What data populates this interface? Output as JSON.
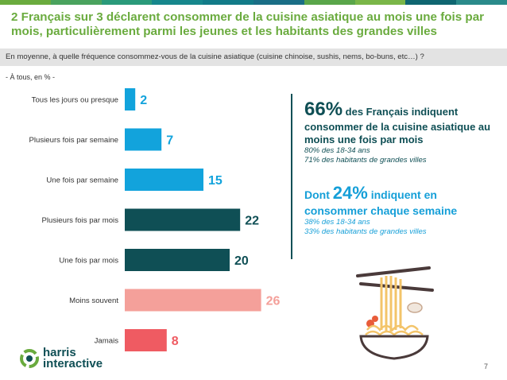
{
  "title": "2 Français sur 3 déclarent consommer de la cuisine asiatique au mois une fois par mois, particulièrement parmi les jeunes et les habitants des grandes villes",
  "question": "En moyenne, à quelle fréquence consommez-vous de la cuisine asiatique (cuisine chinoise, sushis, nems, bo-buns, etc…) ?",
  "base": "- À tous, en % -",
  "chart_data": {
    "type": "bar",
    "orientation": "horizontal",
    "categories": [
      "Tous les jours ou presque",
      "Plusieurs fois par semaine",
      "Une fois par semaine",
      "Plusieurs fois par mois",
      "Une fois par mois",
      "Moins souvent",
      "Jamais"
    ],
    "values": [
      2,
      7,
      15,
      22,
      20,
      26,
      8
    ],
    "colors": [
      "#12a3dc",
      "#12a3dc",
      "#12a3dc",
      "#0f4f55",
      "#0f4f55",
      "#f4a09a",
      "#ef5b62"
    ],
    "label_colors": [
      "#12a3dc",
      "#12a3dc",
      "#12a3dc",
      "#0f4f55",
      "#0f4f55",
      "#f4a09a",
      "#ef5b62"
    ],
    "xlim": [
      0,
      30
    ],
    "grid": false,
    "legend": "none"
  },
  "callouts": {
    "pct1": "66%",
    "text1a": " des Français indiquent",
    "text1b": "consommer de la cuisine asiatique au moins une fois par mois",
    "sub1a": "80% des 18-34 ans",
    "sub1b": "71% des habitants de grandes villes",
    "prefix2": "Dont ",
    "pct2": "24%",
    "text2a": " indiquent en",
    "text2b": "consommer chaque semaine",
    "sub2a": "38% des 18-34 ans",
    "sub2b": "33% des habitants de grandes villes"
  },
  "logo": {
    "line1": "harris",
    "line2": "interactive"
  },
  "page_number": "7",
  "topbar_colors": [
    "#6aab3e",
    "#4aa35e",
    "#2a9a7a",
    "#16878c",
    "#127b88",
    "#1a6e86",
    "#5aa64a",
    "#7ab648",
    "#0f6670",
    "#2a8a8a"
  ]
}
